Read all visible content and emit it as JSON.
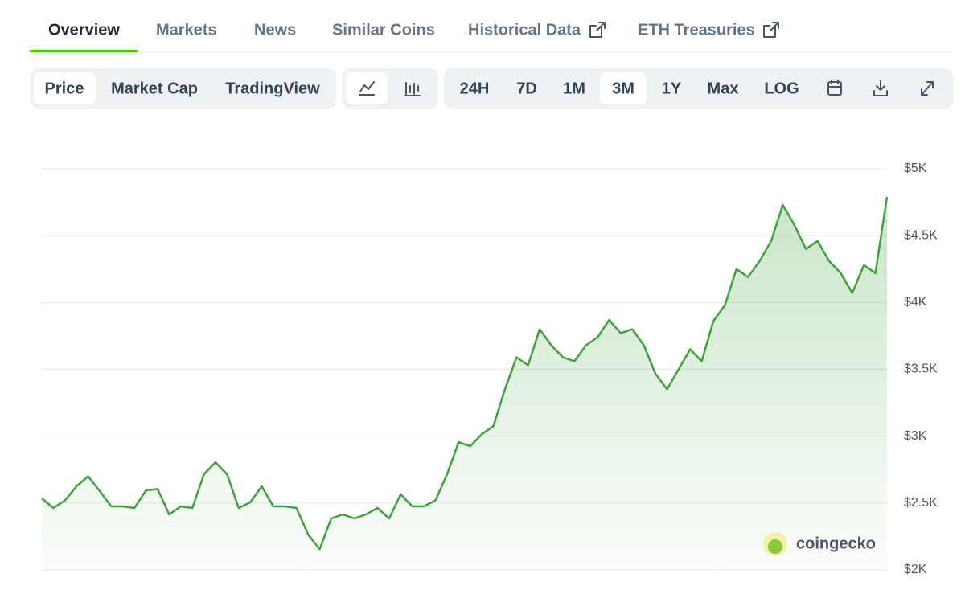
{
  "tabs": {
    "items": [
      "Overview",
      "Markets",
      "News",
      "Similar Coins",
      "Historical Data",
      "ETH Treasuries"
    ],
    "active": 0
  },
  "view_buttons": {
    "items": [
      "Price",
      "Market Cap",
      "TradingView"
    ],
    "active": 0
  },
  "range_buttons": {
    "items": [
      "24H",
      "7D",
      "1M",
      "3M",
      "1Y",
      "Max",
      "LOG"
    ],
    "active": 3
  },
  "watermark": "coingecko",
  "chart_data": {
    "type": "line",
    "color": "#3fa23f",
    "values": [
      2535,
      2463,
      2520,
      2625,
      2700,
      2590,
      2475,
      2475,
      2463,
      2595,
      2605,
      2415,
      2475,
      2463,
      2715,
      2805,
      2715,
      2463,
      2505,
      2625,
      2475,
      2475,
      2463,
      2265,
      2155,
      2385,
      2415,
      2385,
      2415,
      2463,
      2385,
      2565,
      2475,
      2475,
      2520,
      2715,
      2955,
      2925,
      3015,
      3075,
      3350,
      3590,
      3530,
      3800,
      3680,
      3590,
      3560,
      3680,
      3740,
      3870,
      3770,
      3800,
      3680,
      3467,
      3350,
      3500,
      3650,
      3560,
      3860,
      3980,
      4250,
      4190,
      4310,
      4460,
      4730,
      4580,
      4400,
      4460,
      4310,
      4220,
      4070,
      4280,
      4220,
      4790
    ],
    "ylim": [
      2000,
      5000
    ],
    "yticks": [
      {
        "value": 2000,
        "label": "$2K"
      },
      {
        "value": 2500,
        "label": "$2.5K"
      },
      {
        "value": 3000,
        "label": "$3K"
      },
      {
        "value": 3500,
        "label": "$3.5K"
      },
      {
        "value": 4000,
        "label": "$4K"
      },
      {
        "value": 4500,
        "label": "$4.5K"
      },
      {
        "value": 5000,
        "label": "$5K"
      }
    ],
    "grid": true
  }
}
